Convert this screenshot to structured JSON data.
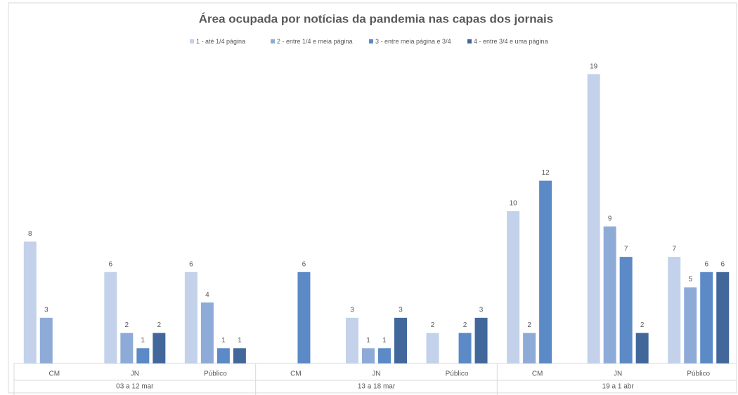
{
  "chart_data": {
    "type": "bar",
    "title": "Área ocupada por notícias da pandemia nas capas dos jornais",
    "categories": [
      "CM",
      "JN",
      "Público",
      "CM",
      "JN",
      "Público",
      "CM",
      "JN",
      "Público"
    ],
    "groups": [
      "03 a 12 mar",
      "13 a 18 mar",
      "19 a 1 abr"
    ],
    "series": [
      {
        "name": "1 - até 1/4 página",
        "color": "#c3d2ea",
        "values": [
          8,
          6,
          6,
          null,
          3,
          2,
          10,
          19,
          7
        ]
      },
      {
        "name": "2 - entre 1/4 e meia página",
        "color": "#8eabd8",
        "values": [
          3,
          2,
          4,
          null,
          1,
          null,
          2,
          9,
          5
        ]
      },
      {
        "name": "3 - entre meia página e 3/4",
        "color": "#5b8ac6",
        "values": [
          null,
          1,
          1,
          6,
          1,
          2,
          12,
          7,
          6
        ]
      },
      {
        "name": "4 - entre 3/4 e uma página",
        "color": "#42689b",
        "values": [
          null,
          2,
          1,
          null,
          3,
          3,
          null,
          2,
          6
        ]
      }
    ],
    "ylim": [
      0,
      20
    ]
  }
}
